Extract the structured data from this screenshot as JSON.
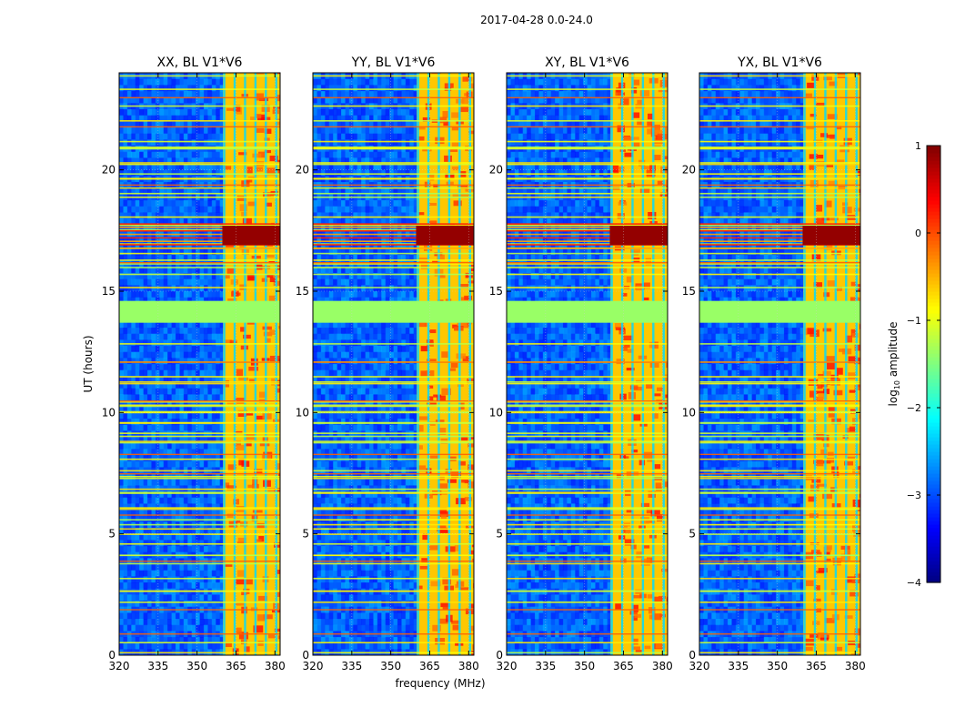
{
  "figure": {
    "suptitle": "2017-04-28 0.0-24.0"
  },
  "chart_data": {
    "type": "heatmap",
    "xlabel": "frequency (MHz)",
    "ylabel": "UT (hours)",
    "xlim": [
      320,
      382
    ],
    "ylim": [
      0,
      24
    ],
    "xticks": [
      320,
      335,
      350,
      365,
      380
    ],
    "yticks": [
      0,
      5,
      10,
      15,
      20
    ],
    "panels": [
      {
        "title": "XX, BL V1*V6"
      },
      {
        "title": "YY, BL V1*V6"
      },
      {
        "title": "XY, BL V1*V6"
      },
      {
        "title": "YX, BL V1*V6"
      }
    ],
    "signal_band_mhz": [
      360,
      382
    ],
    "signal_columns_mhz": [
      360.5,
      364.5,
      368.5,
      372.5,
      376.5,
      380.5
    ],
    "strong_event_ut": [
      16.8,
      17.8
    ],
    "flagged_gap_ut": [
      13.7,
      14.6
    ],
    "colorbar": {
      "label": "log10 amplitude",
      "label_main": "log",
      "label_sub": "10",
      "label_rest": " amplitude",
      "min": -4,
      "max": 1,
      "ticks": [
        -4,
        -3,
        -2,
        -1,
        0,
        1
      ],
      "tick_labels": [
        "−4",
        "−3",
        "−2",
        "−1",
        "0",
        "1"
      ],
      "colormap": "jet"
    }
  }
}
